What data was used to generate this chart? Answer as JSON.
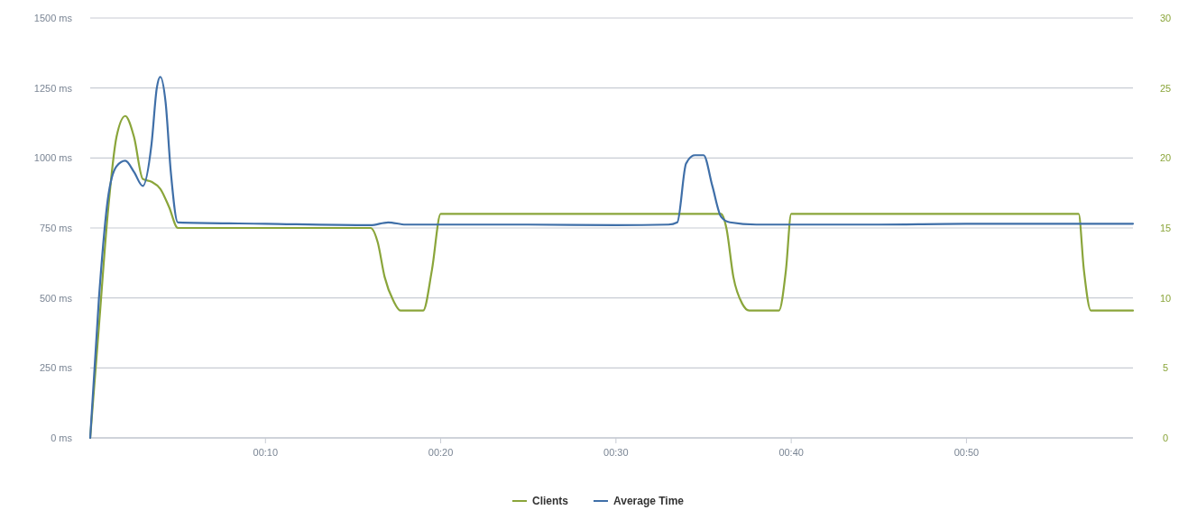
{
  "chart_data": {
    "type": "line",
    "xlim": [
      0,
      59.5
    ],
    "xticks": [
      {
        "value": 10,
        "label": "00:10"
      },
      {
        "value": 20,
        "label": "00:20"
      },
      {
        "value": 30,
        "label": "00:30"
      },
      {
        "value": 40,
        "label": "00:40"
      },
      {
        "value": 50,
        "label": "00:50"
      }
    ],
    "ylim": [
      0,
      1500
    ],
    "yticks": [
      {
        "value": 0,
        "label": "0 ms"
      },
      {
        "value": 250,
        "label": "250 ms"
      },
      {
        "value": 500,
        "label": "500 ms"
      },
      {
        "value": 750,
        "label": "750 ms"
      },
      {
        "value": 1000,
        "label": "1000 ms"
      },
      {
        "value": 1250,
        "label": "1250 ms"
      },
      {
        "value": 1500,
        "label": "1500 ms"
      }
    ],
    "y2lim": [
      0,
      30
    ],
    "y2ticks": [
      0,
      5,
      10,
      15,
      20,
      25,
      30
    ],
    "grid": "y",
    "legend": "bottom",
    "marker": "none",
    "line_style": "solid",
    "series": [
      {
        "name": "Clients",
        "color": "#8aa53a",
        "axis": "y2",
        "x": [
          0,
          0.5,
          1,
          1.5,
          2,
          2.5,
          3,
          3.5,
          4,
          4.5,
          5,
          16,
          16.4,
          16.8,
          17.3,
          17.7,
          19,
          19.5,
          20,
          36,
          36.3,
          36.7,
          37.2,
          37.6,
          39.3,
          39.7,
          40,
          56.4,
          56.7,
          57.1,
          59.5
        ],
        "values": [
          0,
          8,
          16,
          21.5,
          23,
          21.5,
          18.5,
          18.3,
          17.8,
          16.5,
          15,
          15,
          14,
          11.5,
          9.8,
          9.1,
          9.1,
          12,
          16,
          16,
          15,
          11.5,
          9.6,
          9.1,
          9.1,
          12,
          16,
          16,
          12,
          9.1,
          9.1
        ]
      },
      {
        "name": "Average Time",
        "color": "#3f6fa8",
        "x": [
          0,
          0.5,
          1,
          1.5,
          2,
          2.5,
          3,
          3.5,
          3.8,
          4,
          4.3,
          4.6,
          5,
          10,
          16,
          17,
          18,
          25,
          30,
          33,
          33.5,
          34,
          34.5,
          35,
          35.5,
          36,
          36.5,
          38,
          45,
          50,
          59.5
        ],
        "values": [
          0,
          500,
          850,
          970,
          990,
          950,
          900,
          1050,
          1250,
          1290,
          1200,
          950,
          770,
          765,
          760,
          770,
          762,
          762,
          760,
          762,
          770,
          980,
          1010,
          1010,
          900,
          790,
          770,
          762,
          762,
          765,
          765
        ]
      }
    ]
  }
}
